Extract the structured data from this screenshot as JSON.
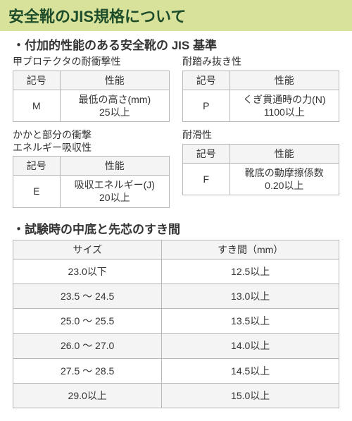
{
  "style": {
    "title_bg": "#d8e29a",
    "title_text_color": "#1e4d2b",
    "title_fontsize": 22,
    "section_fontsize": 17,
    "caption_fontsize": 14,
    "header_bg": "#f4f4f4",
    "zebra_bg": "#f4f4f4",
    "border_color": "#b8b8b8",
    "cell_fontsize": 14,
    "text_color": "#333333"
  },
  "title": "安全靴のJIS規格について",
  "section1": {
    "header": "・付加的性能のある安全靴の JIS 基準",
    "tables": [
      {
        "caption": "甲プロテクタの耐衝撃性",
        "headers": [
          "記号",
          "性能"
        ],
        "rows": [
          [
            "M",
            "最低の高さ(mm)\n25以上"
          ]
        ]
      },
      {
        "caption": "耐踏み抜き性",
        "headers": [
          "記号",
          "性能"
        ],
        "rows": [
          [
            "P",
            "くぎ貫通時の力(N)\n1100以上"
          ]
        ]
      },
      {
        "caption": "かかと部分の衝撃\nエネルギー吸収性",
        "headers": [
          "記号",
          "性能"
        ],
        "rows": [
          [
            "E",
            "吸収エネルギー(J)\n20以上"
          ]
        ]
      },
      {
        "caption": "耐滑性",
        "headers": [
          "記号",
          "性能"
        ],
        "rows": [
          [
            "F",
            "靴底の動摩擦係数\n0.20以上"
          ]
        ]
      }
    ]
  },
  "section2": {
    "header": "・試験時の中底と先芯のすき間",
    "table": {
      "headers": [
        "サイズ",
        "すき間（mm）"
      ],
      "rows": [
        [
          "23.0以下",
          "12.5以上"
        ],
        [
          "23.5 ～ 24.5",
          "13.0以上"
        ],
        [
          "25.0 ～ 25.5",
          "13.5以上"
        ],
        [
          "26.0 ～ 27.0",
          "14.0以上"
        ],
        [
          "27.5 ～ 28.5",
          "14.5以上"
        ],
        [
          "29.0以上",
          "15.0以上"
        ]
      ]
    }
  }
}
